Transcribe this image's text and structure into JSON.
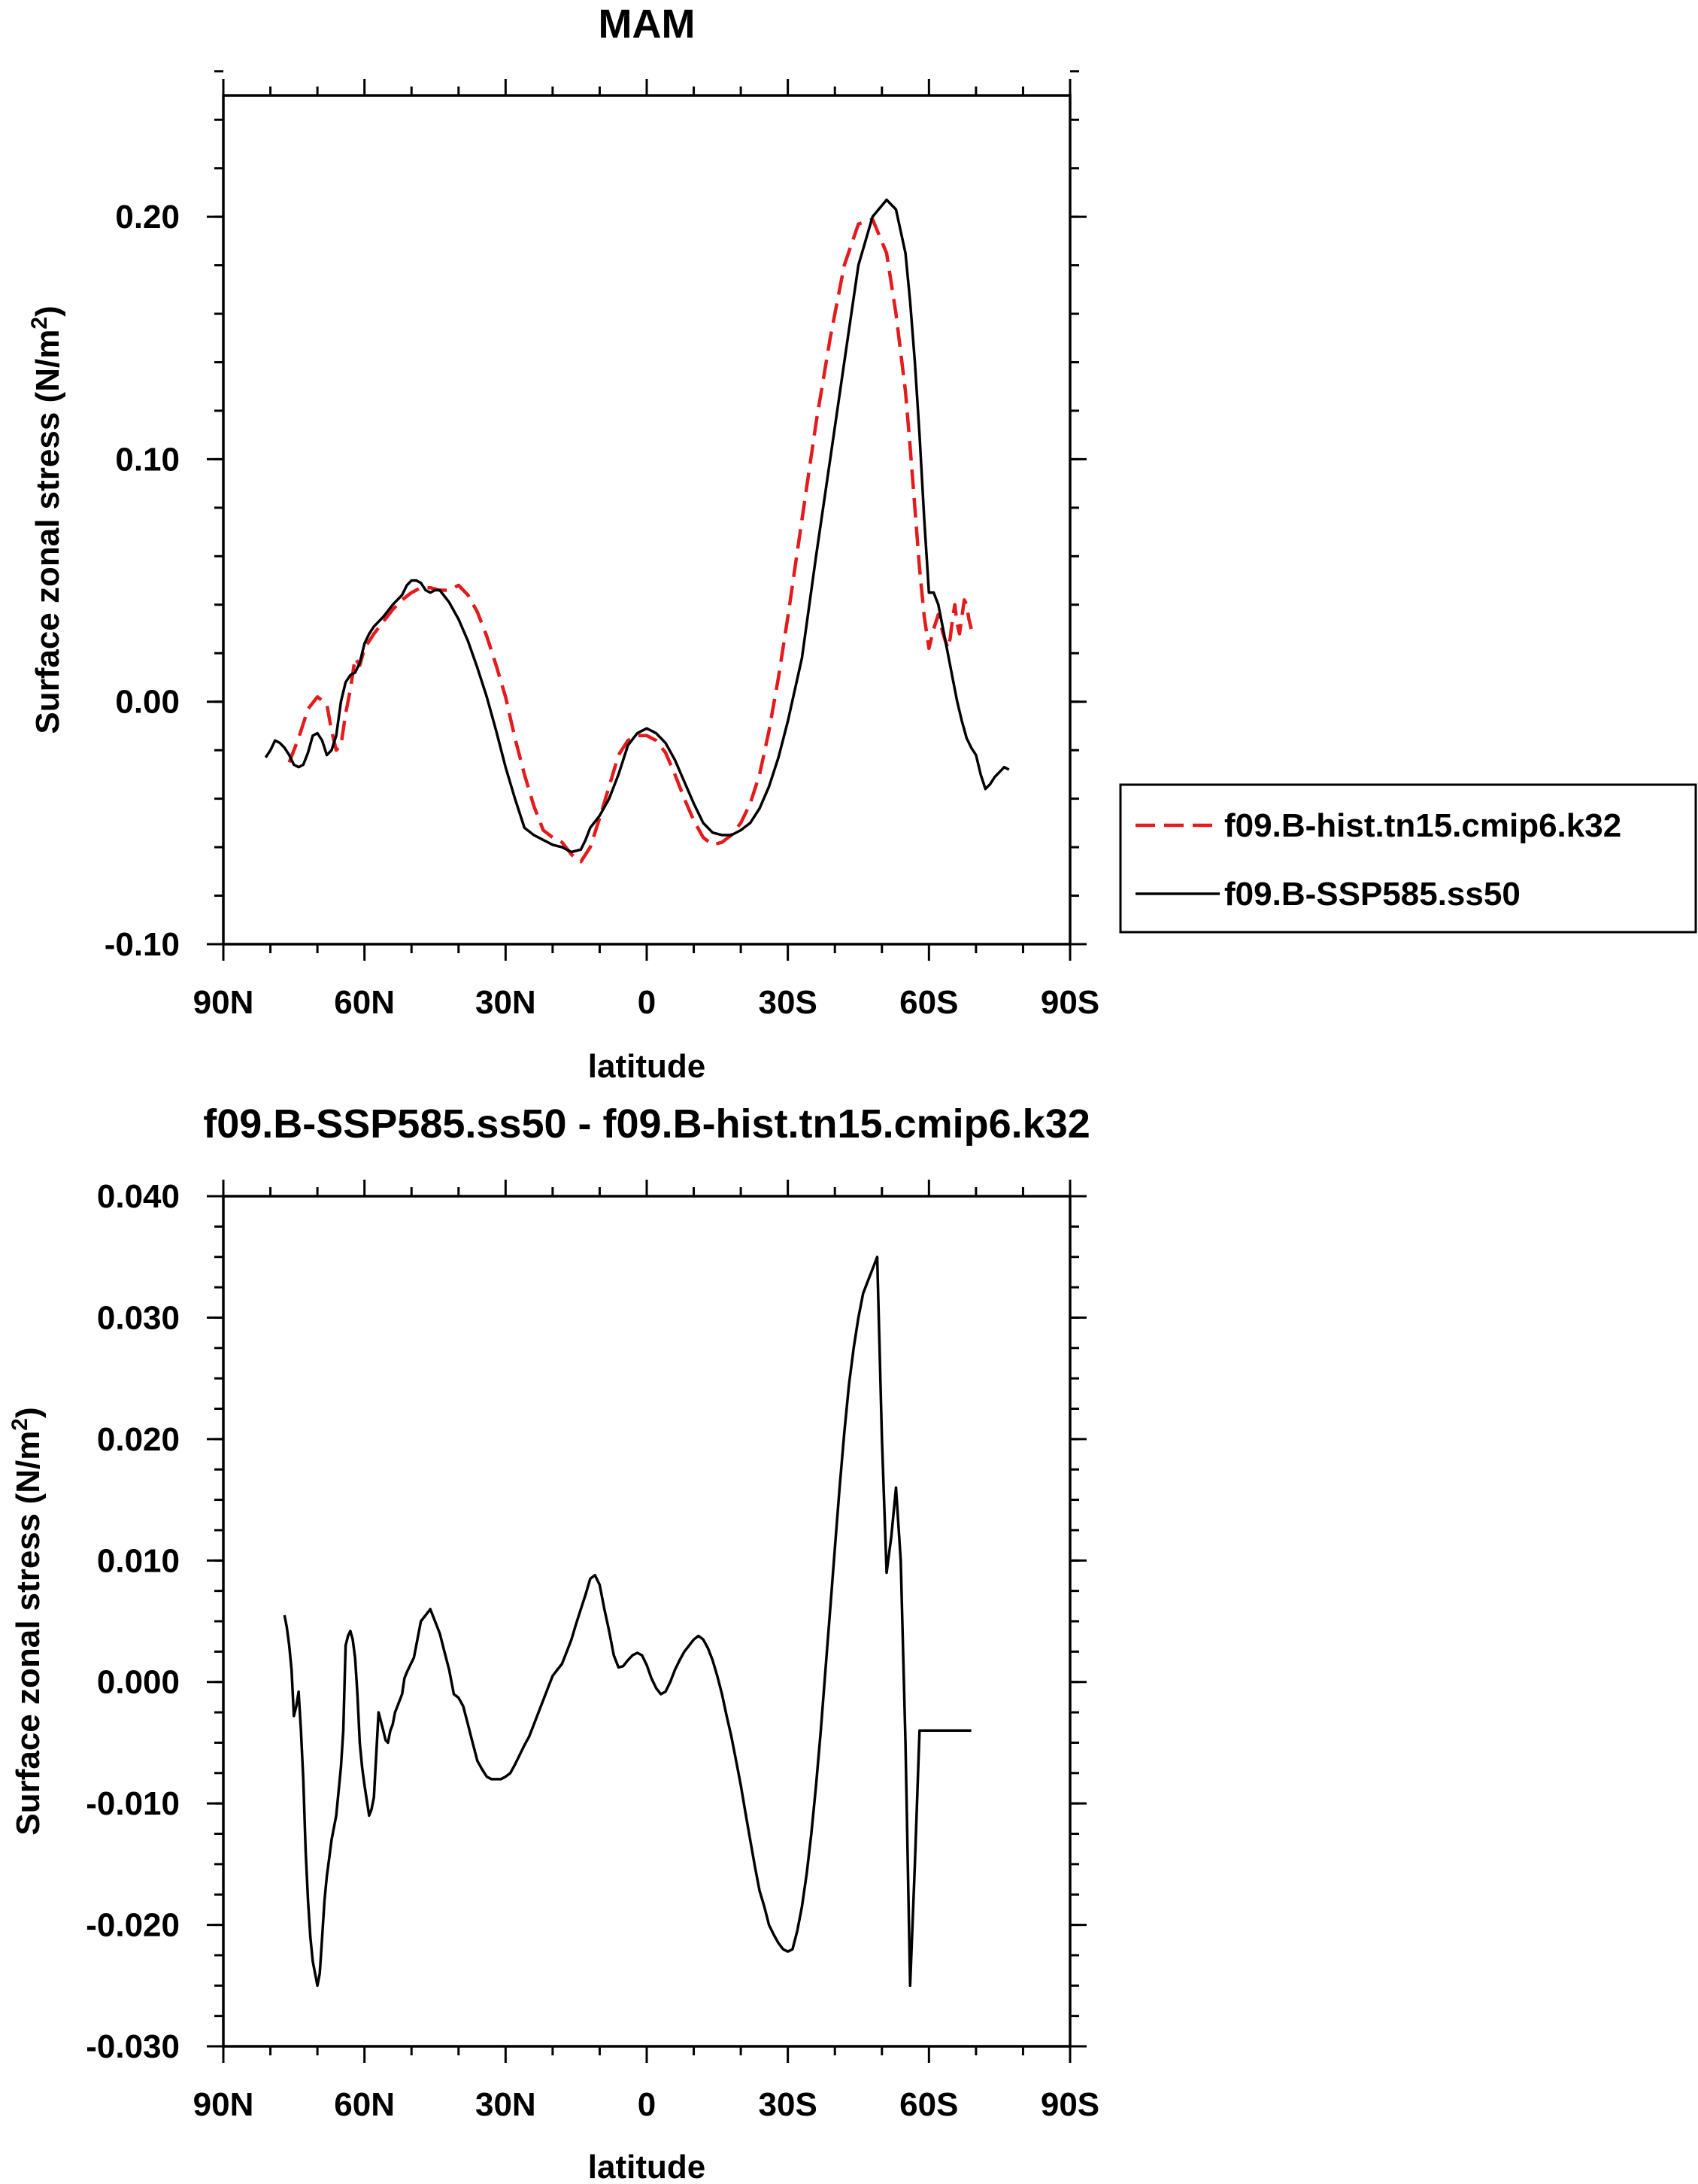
{
  "chart_data": [
    {
      "type": "line",
      "title": "MAM",
      "xlabel": "latitude",
      "ylabel": "Surface zonal stress (N/m",
      "ylabel_sup": "2",
      "ylabel_close": ")",
      "xlim": [
        90,
        -90
      ],
      "ylim": [
        -0.1,
        0.25
      ],
      "x_ticks": [
        90,
        60,
        30,
        0,
        -30,
        -60,
        -90
      ],
      "x_tick_labels": [
        "90N",
        "60N",
        "30N",
        "0",
        "30S",
        "60S",
        "90S"
      ],
      "y_ticks": [
        -0.1,
        0.0,
        0.1,
        0.2
      ],
      "y_tick_labels": [
        "-0.10",
        "0.00",
        "0.10",
        "0.20"
      ],
      "grid": false,
      "legend_position": "right",
      "series": [
        {
          "name": "f09.B-hist.tn15.cmip6.k32",
          "color": "#e41a1c",
          "dash": "dashed",
          "x": [
            76,
            74,
            72,
            70,
            68,
            67,
            66,
            65,
            64,
            63,
            62,
            61,
            60,
            58,
            56,
            54,
            52,
            50,
            48,
            46,
            44,
            42,
            40,
            38,
            36,
            34,
            32,
            30,
            28,
            26,
            24,
            22,
            20,
            18,
            16,
            14,
            12,
            10,
            8,
            6,
            4,
            2,
            0,
            -2,
            -4,
            -6,
            -8,
            -10,
            -12,
            -14,
            -16,
            -18,
            -20,
            -22,
            -24,
            -26,
            -28,
            -30,
            -33,
            -36,
            -39,
            -42,
            -45,
            -48,
            -51,
            -53,
            -55,
            -56,
            -57,
            -58,
            -59,
            -60,
            -61,
            -62,
            -63,
            -64,
            -64.5,
            -65,
            -65.5,
            -66,
            -66.5,
            -67,
            -67.5,
            -68,
            -68.5,
            -69
          ],
          "y": [
            -0.025,
            -0.015,
            -0.003,
            0.002,
            -0.001,
            -0.012,
            -0.02,
            -0.018,
            -0.005,
            0.005,
            0.018,
            0.015,
            0.022,
            0.028,
            0.033,
            0.038,
            0.042,
            0.045,
            0.047,
            0.047,
            0.046,
            0.046,
            0.048,
            0.044,
            0.037,
            0.027,
            0.015,
            0.002,
            -0.015,
            -0.03,
            -0.043,
            -0.053,
            -0.056,
            -0.058,
            -0.063,
            -0.066,
            -0.06,
            -0.048,
            -0.035,
            -0.022,
            -0.016,
            -0.014,
            -0.014,
            -0.016,
            -0.021,
            -0.03,
            -0.04,
            -0.049,
            -0.056,
            -0.059,
            -0.058,
            -0.055,
            -0.05,
            -0.042,
            -0.03,
            -0.012,
            0.01,
            0.035,
            0.075,
            0.115,
            0.15,
            0.18,
            0.197,
            0.199,
            0.185,
            0.16,
            0.128,
            0.105,
            0.08,
            0.055,
            0.035,
            0.022,
            0.03,
            0.036,
            0.028,
            0.022,
            0.026,
            0.034,
            0.04,
            0.032,
            0.028,
            0.035,
            0.042,
            0.04,
            0.034,
            0.03
          ]
        },
        {
          "name": "f09.B-SSP585.ss50",
          "color": "#000000",
          "dash": "solid",
          "x": [
            81,
            80,
            79,
            78,
            77,
            76,
            75,
            74,
            73,
            72,
            71,
            70,
            69,
            68,
            67,
            66,
            65,
            64,
            63,
            62,
            61,
            60,
            59,
            58,
            56,
            54,
            52,
            51,
            50,
            49,
            48,
            47,
            46,
            45,
            44,
            42,
            40,
            38,
            36,
            34,
            32,
            30,
            28,
            26,
            24,
            22,
            20,
            18,
            16,
            14,
            13,
            12,
            10,
            8,
            6,
            4,
            2,
            0,
            -2,
            -4,
            -6,
            -8,
            -10,
            -12,
            -14,
            -16,
            -18,
            -20,
            -22,
            -24,
            -26,
            -28,
            -30,
            -33,
            -36,
            -39,
            -42,
            -45,
            -48,
            -51,
            -53,
            -55,
            -56,
            -57,
            -58,
            -59,
            -60,
            -61,
            -62,
            -63,
            -64,
            -65,
            -66,
            -67,
            -68,
            -69,
            -70,
            -71,
            -72,
            -73,
            -74,
            -75,
            -76,
            -77
          ],
          "y": [
            -0.023,
            -0.02,
            -0.016,
            -0.017,
            -0.019,
            -0.022,
            -0.026,
            -0.027,
            -0.026,
            -0.021,
            -0.014,
            -0.013,
            -0.016,
            -0.022,
            -0.02,
            -0.014,
            0.0,
            0.008,
            0.011,
            0.012,
            0.016,
            0.024,
            0.028,
            0.031,
            0.035,
            0.04,
            0.044,
            0.048,
            0.05,
            0.05,
            0.049,
            0.046,
            0.045,
            0.046,
            0.046,
            0.041,
            0.034,
            0.025,
            0.014,
            0.002,
            -0.012,
            -0.027,
            -0.04,
            -0.052,
            -0.055,
            -0.057,
            -0.059,
            -0.06,
            -0.062,
            -0.061,
            -0.057,
            -0.052,
            -0.047,
            -0.04,
            -0.03,
            -0.018,
            -0.013,
            -0.011,
            -0.013,
            -0.017,
            -0.024,
            -0.033,
            -0.042,
            -0.05,
            -0.054,
            -0.055,
            -0.055,
            -0.053,
            -0.05,
            -0.044,
            -0.035,
            -0.023,
            -0.008,
            0.018,
            0.06,
            0.1,
            0.14,
            0.18,
            0.2,
            0.207,
            0.203,
            0.185,
            0.165,
            0.14,
            0.11,
            0.075,
            0.045,
            0.045,
            0.04,
            0.03,
            0.02,
            0.01,
            0.0,
            -0.008,
            -0.015,
            -0.019,
            -0.022,
            -0.03,
            -0.036,
            -0.034,
            -0.031,
            -0.029,
            -0.027,
            -0.028
          ]
        }
      ]
    },
    {
      "type": "line",
      "title": "f09.B-SSP585.ss50 - f09.B-hist.tn15.cmip6.k32",
      "xlabel": "latitude",
      "ylabel": "Surface zonal stress (N/m",
      "ylabel_sup": "2",
      "ylabel_close": ")",
      "xlim": [
        90,
        -90
      ],
      "ylim": [
        -0.03,
        0.04
      ],
      "x_ticks": [
        90,
        60,
        30,
        0,
        -30,
        -60,
        -90
      ],
      "x_tick_labels": [
        "90N",
        "60N",
        "30N",
        "0",
        "30S",
        "60S",
        "90S"
      ],
      "y_ticks": [
        -0.03,
        -0.02,
        -0.01,
        0.0,
        0.01,
        0.02,
        0.03,
        0.04
      ],
      "y_tick_labels": [
        "-0.030",
        "-0.020",
        "-0.010",
        "0.000",
        "0.010",
        "0.020",
        "0.030",
        "0.040"
      ],
      "grid": false,
      "series": [
        {
          "color": "#000000",
          "dash": "solid",
          "x": [
            77,
            76.5,
            76,
            75.5,
            75,
            74.5,
            74,
            73.5,
            73,
            72.5,
            72,
            71.5,
            71,
            70,
            69.5,
            69,
            68.5,
            68,
            67.5,
            67,
            66.5,
            66,
            65,
            64.5,
            64,
            63.5,
            63,
            62.5,
            62,
            61.5,
            61,
            60.5,
            60,
            59,
            58.5,
            58,
            57.5,
            57,
            56,
            55.5,
            55,
            54.5,
            54,
            53.5,
            53,
            52,
            51.5,
            51,
            50.5,
            50,
            49.5,
            49,
            48.5,
            48,
            47,
            46,
            45,
            44,
            43,
            42,
            41,
            40,
            39,
            38,
            37,
            36,
            35,
            34,
            33,
            32,
            31,
            30,
            29,
            28,
            27,
            26,
            25,
            24,
            23,
            22,
            21,
            20,
            19,
            18,
            17,
            16,
            15,
            14,
            13,
            12,
            11,
            10,
            9,
            8,
            7,
            6,
            5,
            4,
            3,
            2,
            1,
            0,
            -1,
            -2,
            -3,
            -4,
            -5,
            -6,
            -7,
            -8,
            -9,
            -10,
            -11,
            -12,
            -13,
            -14,
            -15,
            -16,
            -17,
            -18,
            -19,
            -20,
            -21,
            -22,
            -23,
            -24,
            -25,
            -26,
            -27,
            -28,
            -29,
            -30,
            -31,
            -32,
            -33,
            -34,
            -35,
            -36,
            -37,
            -38,
            -39,
            -40,
            -41,
            -42,
            -43,
            -44,
            -45,
            -46,
            -47,
            -48,
            -49,
            -50,
            -51,
            -52,
            -53,
            -54,
            -55,
            -56,
            -57,
            -58,
            -59,
            -60,
            -61,
            -62,
            -63,
            -64,
            -64.5,
            -65,
            -65.5,
            -66,
            -66.5,
            -67,
            -67.5,
            -68,
            -68.5,
            -69
          ],
          "y": [
            0.0055,
            0.0045,
            0.003,
            0.001,
            -0.0028,
            -0.002,
            -0.0008,
            -0.004,
            -0.008,
            -0.014,
            -0.018,
            -0.021,
            -0.023,
            -0.025,
            -0.024,
            -0.021,
            -0.018,
            -0.016,
            -0.0145,
            -0.013,
            -0.012,
            -0.011,
            -0.007,
            -0.004,
            0.003,
            0.0038,
            0.0042,
            0.0035,
            0.002,
            -0.001,
            -0.005,
            -0.007,
            -0.0085,
            -0.011,
            -0.0105,
            -0.0095,
            -0.006,
            -0.0025,
            -0.004,
            -0.0048,
            -0.005,
            -0.004,
            -0.0035,
            -0.0025,
            -0.002,
            -0.001,
            0.0003,
            0.0008,
            0.0012,
            0.0016,
            0.002,
            0.003,
            0.004,
            0.005,
            0.0055,
            0.006,
            0.005,
            0.004,
            0.0025,
            0.001,
            -0.001,
            -0.0013,
            -0.002,
            -0.0035,
            -0.005,
            -0.0065,
            -0.0072,
            -0.0078,
            -0.008,
            -0.008,
            -0.008,
            -0.0078,
            -0.0075,
            -0.0068,
            -0.006,
            -0.0052,
            -0.0045,
            -0.0035,
            -0.0025,
            -0.0015,
            -0.0005,
            0.0005,
            0.001,
            0.0015,
            0.0025,
            0.0035,
            0.0048,
            0.006,
            0.0072,
            0.0085,
            0.0088,
            0.008,
            0.006,
            0.0042,
            0.0022,
            0.0012,
            0.0013,
            0.0018,
            0.0022,
            0.0024,
            0.0022,
            0.0014,
            0.0003,
            -0.0005,
            -0.001,
            -0.0008,
            0.0,
            0.001,
            0.0018,
            0.0025,
            0.003,
            0.0035,
            0.0038,
            0.0035,
            0.0028,
            0.0018,
            0.0005,
            -0.001,
            -0.0028,
            -0.0045,
            -0.0065,
            -0.0085,
            -0.0108,
            -0.013,
            -0.0152,
            -0.0172,
            -0.0185,
            -0.02,
            -0.0208,
            -0.0215,
            -0.022,
            -0.0222,
            -0.022,
            -0.0205,
            -0.0185,
            -0.0158,
            -0.0125,
            -0.0085,
            -0.004,
            0.001,
            0.006,
            0.011,
            0.016,
            0.0205,
            0.0245,
            0.0275,
            0.03,
            0.032,
            0.033,
            0.034,
            0.035,
            0.02,
            0.009,
            0.012,
            0.016,
            0.01,
            -0.005,
            -0.025,
            -0.015,
            -0.004,
            -0.004,
            -0.004,
            -0.004,
            -0.004,
            -0.004,
            -0.004,
            -0.004,
            -0.004,
            -0.004,
            -0.004,
            -0.004,
            -0.004,
            -0.004,
            -0.004,
            -0.004,
            -0.004
          ]
        }
      ]
    }
  ]
}
